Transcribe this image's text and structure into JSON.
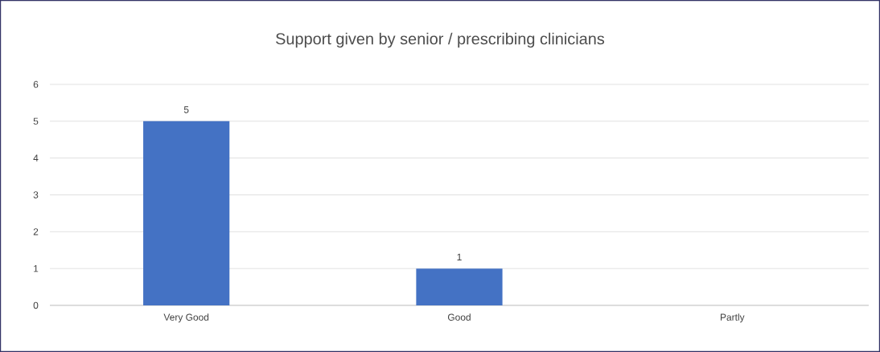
{
  "chart_data": {
    "type": "bar",
    "title": "Support given by senior / prescribing clinicians",
    "categories": [
      "Very Good",
      "Good",
      "Partly"
    ],
    "values": [
      5,
      1,
      0
    ],
    "value_labels": [
      "5",
      "1",
      null
    ],
    "color": "#4472c4",
    "ylim": [
      0,
      6
    ],
    "yticks": [
      0,
      1,
      2,
      3,
      4,
      5,
      6
    ],
    "grid": "y"
  }
}
